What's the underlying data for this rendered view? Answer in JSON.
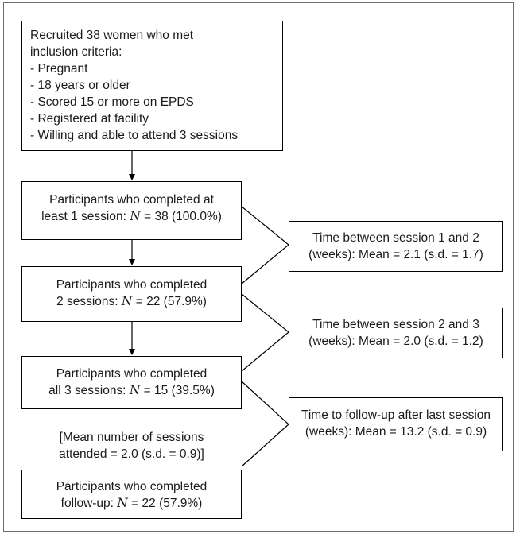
{
  "inclusion": {
    "heading_1": "Recruited 38 women who met",
    "heading_2": "inclusion criteria:",
    "criteria": [
      "- Pregnant",
      "- 18 years or older",
      "- Scored 15 or more on EPDS",
      "- Registered at facility",
      "- Willing and able to attend 3 sessions"
    ]
  },
  "stages": [
    {
      "line1": "Participants who completed at",
      "prefix": "least 1 session: ",
      "n_symbol": "N",
      "n_value": " = 38 (100.0%)"
    },
    {
      "line1": "Participants who completed",
      "prefix": "2 sessions: ",
      "n_symbol": "N",
      "n_value": " = 22 (57.9%)"
    },
    {
      "line1": "Participants who completed",
      "prefix": "all 3 sessions: ",
      "n_symbol": "N",
      "n_value": " = 15 (39.5%)"
    },
    {
      "line1": "Participants who completed",
      "prefix": "follow-up: ",
      "n_symbol": "N",
      "n_value": " = 22 (57.9%)"
    }
  ],
  "timings": [
    {
      "line1": "Time between session 1 and 2",
      "line2": "(weeks): Mean = 2.1 (s.d. = 1.7)"
    },
    {
      "line1": "Time between session 2 and 3",
      "line2": "(weeks): Mean = 2.0 (s.d. = 1.2)"
    },
    {
      "line1": "Time to follow-up after last session",
      "line2": "(weeks): Mean = 13.2 (s.d. = 0.9)"
    }
  ],
  "mean_sessions_note": {
    "line1": "[Mean number of sessions",
    "line2": "attended = 2.0 (s.d. = 0.9)]"
  }
}
